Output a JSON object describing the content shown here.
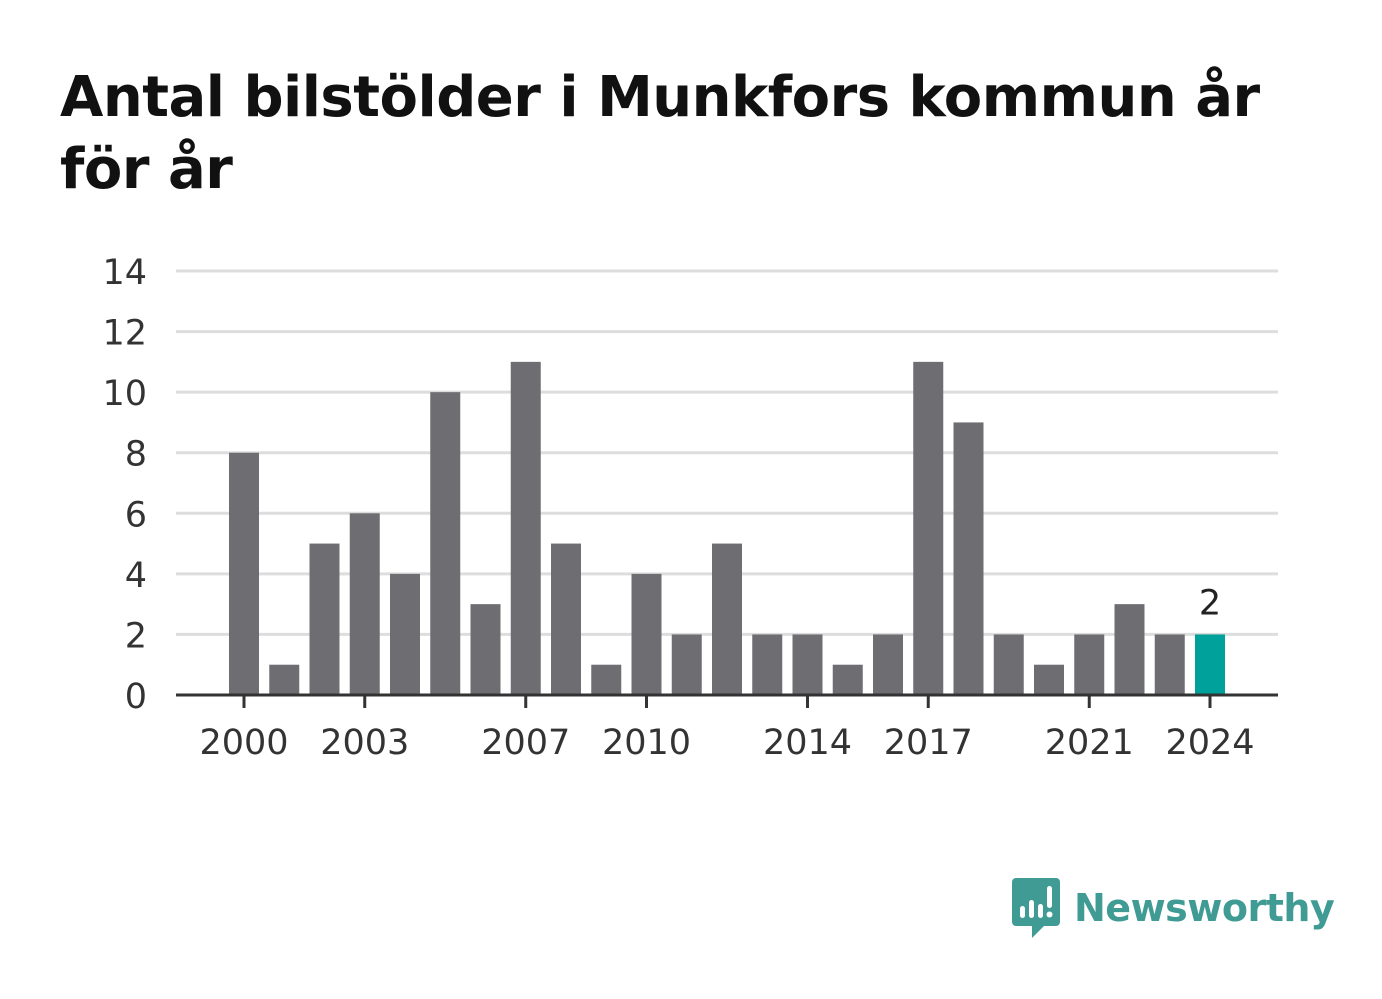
{
  "title": "Antal bilstölder i Munkfors kommun år för år",
  "brand": {
    "name": "Newsworthy",
    "icon": "newsworthy-logo-icon",
    "color": "#3f9b94"
  },
  "colors": {
    "bar": "#6e6d72",
    "highlight": "#00a19a",
    "grid": "#dddddd",
    "axis": "#333333",
    "text": "#333333"
  },
  "chart_data": {
    "type": "bar",
    "x": [
      2000,
      2001,
      2002,
      2003,
      2004,
      2005,
      2006,
      2007,
      2008,
      2009,
      2010,
      2011,
      2012,
      2013,
      2014,
      2015,
      2016,
      2017,
      2018,
      2019,
      2020,
      2021,
      2022,
      2023,
      2024
    ],
    "values": [
      8,
      1,
      5,
      6,
      4,
      10,
      3,
      11,
      5,
      1,
      4,
      2,
      5,
      2,
      2,
      1,
      2,
      11,
      9,
      2,
      1,
      2,
      3,
      2,
      2
    ],
    "x_tick_labels": [
      "2000",
      "2003",
      "2007",
      "2010",
      "2014",
      "2017",
      "2021",
      "2024"
    ],
    "y_ticks": [
      0,
      2,
      4,
      6,
      8,
      10,
      12,
      14
    ],
    "ylim": [
      0,
      14
    ],
    "highlight_index": 24,
    "highlight_label": "2",
    "grid": true,
    "legend": false
  }
}
